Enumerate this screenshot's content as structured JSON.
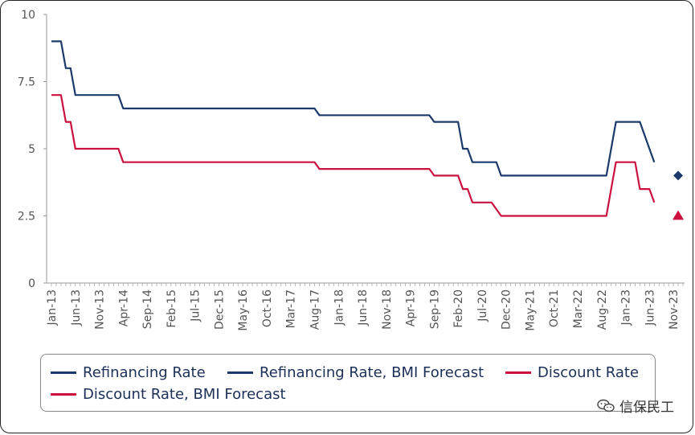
{
  "chart_data": {
    "type": "line",
    "ylim": [
      0,
      10
    ],
    "yticks": [
      "0",
      "2.5",
      "5",
      "7.5",
      "10"
    ],
    "xticks": [
      "Jan-13",
      "Jun-13",
      "Nov-13",
      "Apr-14",
      "Sep-14",
      "Feb-15",
      "Jul-15",
      "Dec-15",
      "May-16",
      "Oct-16",
      "Mar-17",
      "Aug-17",
      "Jan-18",
      "Jun-18",
      "Nov-18",
      "Apr-19",
      "Sep-19",
      "Feb-20",
      "Jul-20",
      "Dec-20",
      "May-21",
      "Oct-21",
      "Mar-22",
      "Aug-22",
      "Jan-23",
      "Jun-23",
      "Nov-23"
    ],
    "grid": false,
    "legend_position": "bottom",
    "series": [
      {
        "name": "Refinancing Rate",
        "color": "#1b3a6b",
        "style": "line",
        "points": [
          [
            "Jan-13",
            9.0
          ],
          [
            "Mar-13",
            9.0
          ],
          [
            "Apr-13",
            8.0
          ],
          [
            "May-13",
            8.0
          ],
          [
            "Jun-13",
            7.0
          ],
          [
            "Jan-14",
            7.0
          ],
          [
            "Mar-14",
            7.0
          ],
          [
            "Apr-14",
            6.5
          ],
          [
            "Jan-17",
            6.5
          ],
          [
            "Aug-17",
            6.5
          ],
          [
            "Sep-17",
            6.25
          ],
          [
            "Jan-18",
            6.25
          ],
          [
            "Aug-19",
            6.25
          ],
          [
            "Sep-19",
            6.0
          ],
          [
            "Jan-20",
            6.0
          ],
          [
            "Feb-20",
            6.0
          ],
          [
            "Mar-20",
            5.0
          ],
          [
            "Apr-20",
            5.0
          ],
          [
            "May-20",
            4.5
          ],
          [
            "Jun-20",
            4.5
          ],
          [
            "Oct-20",
            4.5
          ],
          [
            "Nov-20",
            4.0
          ],
          [
            "Aug-22",
            4.0
          ],
          [
            "Sep-22",
            4.0
          ],
          [
            "Nov-22",
            6.0
          ],
          [
            "Dec-22",
            6.0
          ],
          [
            "Apr-23",
            6.0
          ],
          [
            "Jun-23",
            5.0
          ],
          [
            "Jul-23",
            4.5
          ]
        ]
      },
      {
        "name": "Refinancing Rate, BMI Forecast",
        "color": "#1b3a6b",
        "style": "diamond",
        "points": [
          [
            "Dec-23",
            4.0
          ]
        ]
      },
      {
        "name": "Discount Rate",
        "color": "#cc1140",
        "style": "line",
        "points": [
          [
            "Jan-13",
            7.0
          ],
          [
            "Mar-13",
            7.0
          ],
          [
            "Apr-13",
            6.0
          ],
          [
            "May-13",
            6.0
          ],
          [
            "Jun-13",
            5.0
          ],
          [
            "Jan-14",
            5.0
          ],
          [
            "Mar-14",
            5.0
          ],
          [
            "Apr-14",
            4.5
          ],
          [
            "Aug-17",
            4.5
          ],
          [
            "Sep-17",
            4.25
          ],
          [
            "Aug-19",
            4.25
          ],
          [
            "Sep-19",
            4.0
          ],
          [
            "Feb-20",
            4.0
          ],
          [
            "Mar-20",
            3.5
          ],
          [
            "Apr-20",
            3.5
          ],
          [
            "May-20",
            3.0
          ],
          [
            "Sep-20",
            3.0
          ],
          [
            "Nov-20",
            2.5
          ],
          [
            "Sep-22",
            2.5
          ],
          [
            "Nov-22",
            4.5
          ],
          [
            "Mar-23",
            4.5
          ],
          [
            "Apr-23",
            3.5
          ],
          [
            "Jun-23",
            3.5
          ],
          [
            "Jul-23",
            3.0
          ]
        ]
      },
      {
        "name": "Discount Rate, BMI Forecast",
        "color": "#cc1140",
        "style": "triangle",
        "points": [
          [
            "Dec-23",
            2.5
          ]
        ]
      }
    ]
  },
  "legend": {
    "items": [
      {
        "label": "Refinancing Rate",
        "color": "#1b3a6b"
      },
      {
        "label": "Refinancing Rate, BMI Forecast",
        "color": "#1b3a6b"
      },
      {
        "label": "Discount Rate",
        "color": "#cc1140"
      },
      {
        "label": "Discount Rate, BMI Forecast",
        "color": "#cc1140"
      }
    ]
  },
  "watermark": {
    "text": "信保民工",
    "icon": "wechat-icon"
  }
}
